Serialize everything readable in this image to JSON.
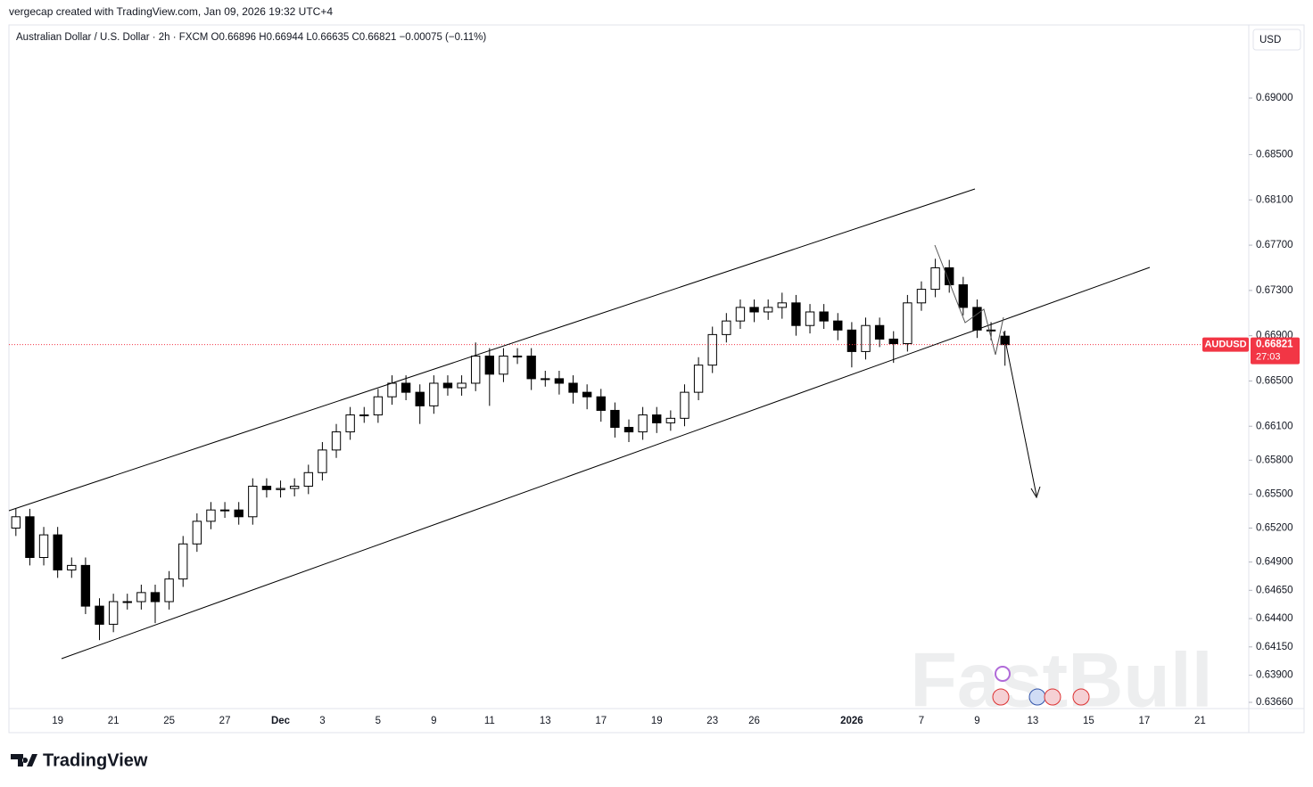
{
  "chart_data": {
    "type": "candlestick",
    "credit": "vergecap created with TradingView.com, Jan 09, 2026 19:32 UTC+4",
    "legend": "Australian Dollar / U.S. Dollar · 2h · FXCM  O0.66896  H0.66944  L0.66635  C0.66821  −0.00075 (−0.11%)",
    "currency": "USD",
    "brand": "TradingView",
    "watermark": "FastBull",
    "last_price": {
      "symbol": "AUDUSD",
      "price": "0.66821",
      "countdown": "27:03"
    },
    "up_color": "#ffffff",
    "down_color": "#000000",
    "outline_color": "#000000",
    "price_line_color": "#f23645",
    "grid": false,
    "categories": [
      null,
      null,
      null,
      "19",
      null,
      null,
      null,
      "21",
      null,
      null,
      null,
      "25",
      null,
      null,
      null,
      "27",
      null,
      null,
      null,
      "Dec",
      null,
      null,
      "3",
      null,
      null,
      null,
      "5",
      null,
      null,
      null,
      "9",
      null,
      null,
      null,
      "11",
      null,
      null,
      null,
      "13",
      null,
      null,
      null,
      "17",
      null,
      null,
      null,
      "19",
      null,
      null,
      null,
      "23",
      null,
      null,
      "26",
      null,
      null,
      null,
      null,
      null,
      null,
      "2026",
      null,
      null,
      null,
      null,
      "7",
      null,
      null,
      null,
      "9",
      null,
      null,
      null,
      "13",
      null,
      null,
      null,
      "15",
      null,
      null,
      null,
      "17",
      null,
      null,
      null,
      "21",
      null,
      null,
      null
    ],
    "open": [
      0.652,
      0.653,
      0.6494,
      0.6514,
      0.6483,
      0.6487,
      0.6451,
      0.6435,
      0.6455,
      0.6455,
      0.6463,
      0.6455,
      0.6475,
      0.6506,
      0.6526,
      0.6536,
      0.6536,
      0.653,
      0.6557,
      0.6554,
      0.6555,
      0.6557,
      0.6569,
      0.6589,
      0.6605,
      0.662,
      0.662,
      0.6636,
      0.6648,
      0.664,
      0.6628,
      0.6648,
      0.6644,
      0.6648,
      0.6672,
      0.6656,
      0.6672,
      0.6672,
      0.6652,
      0.6652,
      0.6648,
      0.664,
      0.6636,
      0.6624,
      0.6609,
      0.6605,
      0.662,
      0.6613,
      0.6617,
      0.664,
      0.6664,
      0.6691,
      0.6703,
      0.6715,
      0.6711,
      0.6715,
      0.6719,
      0.6699,
      0.6711,
      0.6703,
      0.6695,
      0.6676,
      0.6699,
      0.6687,
      0.6683,
      0.6719,
      0.6731,
      0.675,
      0.6735,
      0.6715,
      0.6695,
      0.66896,
      null,
      null,
      null,
      null,
      null,
      null,
      null,
      null,
      null,
      null,
      null,
      null,
      null,
      null,
      null,
      null,
      null
    ],
    "high": [
      0.6537,
      0.6537,
      0.6521,
      0.6521,
      0.6494,
      0.6494,
      0.6458,
      0.6462,
      0.6462,
      0.647,
      0.647,
      0.6482,
      0.6513,
      0.6533,
      0.6543,
      0.6543,
      0.6543,
      0.6564,
      0.6564,
      0.6562,
      0.6564,
      0.6576,
      0.6596,
      0.6612,
      0.6627,
      0.6627,
      0.6643,
      0.6655,
      0.6655,
      0.6647,
      0.6655,
      0.6655,
      0.6655,
      0.6684,
      0.6679,
      0.6679,
      0.6679,
      0.6679,
      0.6659,
      0.6659,
      0.6655,
      0.6647,
      0.6643,
      0.6631,
      0.6616,
      0.6627,
      0.6627,
      0.6624,
      0.6647,
      0.6671,
      0.6698,
      0.671,
      0.6722,
      0.6722,
      0.6722,
      0.6728,
      0.6726,
      0.6718,
      0.6718,
      0.671,
      0.6702,
      0.6706,
      0.6706,
      0.6694,
      0.6726,
      0.6738,
      0.6758,
      0.6757,
      0.6742,
      0.6722,
      0.6702,
      0.66944,
      null,
      null,
      null,
      null,
      null,
      null,
      null,
      null,
      null,
      null,
      null,
      null,
      null,
      null,
      null,
      null,
      null
    ],
    "low": [
      0.6513,
      0.6487,
      0.6487,
      0.6476,
      0.6476,
      0.6444,
      0.6421,
      0.6428,
      0.6448,
      0.6448,
      0.6436,
      0.6448,
      0.6468,
      0.6499,
      0.6519,
      0.6529,
      0.6523,
      0.6523,
      0.6547,
      0.6547,
      0.6548,
      0.655,
      0.6562,
      0.6582,
      0.6598,
      0.6613,
      0.6613,
      0.6629,
      0.6633,
      0.6612,
      0.6621,
      0.6637,
      0.6637,
      0.6641,
      0.6628,
      0.6649,
      0.6665,
      0.6642,
      0.6645,
      0.6638,
      0.663,
      0.6625,
      0.6614,
      0.66,
      0.6596,
      0.6598,
      0.6604,
      0.6606,
      0.661,
      0.6633,
      0.6657,
      0.6684,
      0.6696,
      0.6702,
      0.6704,
      0.6705,
      0.669,
      0.6692,
      0.6696,
      0.6686,
      0.6662,
      0.6669,
      0.668,
      0.6666,
      0.6676,
      0.6712,
      0.6724,
      0.6728,
      0.6708,
      0.6688,
      0.6686,
      0.66635,
      null,
      null,
      null,
      null,
      null,
      null,
      null,
      null,
      null,
      null,
      null,
      null,
      null,
      null,
      null,
      null,
      null
    ],
    "close": [
      0.653,
      0.6494,
      0.6514,
      0.6483,
      0.6487,
      0.6451,
      0.6435,
      0.6455,
      0.6455,
      0.6463,
      0.6455,
      0.6475,
      0.6506,
      0.6526,
      0.6536,
      0.6536,
      0.653,
      0.6557,
      0.6554,
      0.6555,
      0.6557,
      0.6569,
      0.6589,
      0.6605,
      0.662,
      0.662,
      0.6636,
      0.6648,
      0.664,
      0.6628,
      0.6648,
      0.6644,
      0.6648,
      0.6672,
      0.6656,
      0.6672,
      0.6672,
      0.6652,
      0.6652,
      0.6648,
      0.664,
      0.6636,
      0.6624,
      0.6609,
      0.6605,
      0.662,
      0.6613,
      0.6617,
      0.664,
      0.6664,
      0.6691,
      0.6703,
      0.6715,
      0.6711,
      0.6715,
      0.6719,
      0.6699,
      0.6711,
      0.6703,
      0.6695,
      0.6676,
      0.6699,
      0.6687,
      0.6683,
      0.6719,
      0.6731,
      0.675,
      0.6735,
      0.6715,
      0.6695,
      0.6695,
      0.66821,
      null,
      null,
      null,
      null,
      null,
      null,
      null,
      null,
      null,
      null,
      null,
      null,
      null,
      null,
      null,
      null,
      null
    ],
    "ylim": [
      0.63605,
      0.69646
    ],
    "yticks": [
      {
        "value": 0.69,
        "label": "0.69000"
      },
      {
        "value": 0.685,
        "label": "0.68500"
      },
      {
        "value": 0.681,
        "label": "0.68100"
      },
      {
        "value": 0.677,
        "label": "0.67700"
      },
      {
        "value": 0.673,
        "label": "0.67300"
      },
      {
        "value": 0.669,
        "label": "0.66900"
      },
      {
        "value": 0.665,
        "label": "0.66500"
      },
      {
        "value": 0.661,
        "label": "0.66100"
      },
      {
        "value": 0.658,
        "label": "0.65800"
      },
      {
        "value": 0.655,
        "label": "0.65500"
      },
      {
        "value": 0.652,
        "label": "0.65200"
      },
      {
        "value": 0.649,
        "label": "0.64900"
      },
      {
        "value": 0.6465,
        "label": "0.64650"
      },
      {
        "value": 0.644,
        "label": "0.64400"
      },
      {
        "value": 0.6415,
        "label": "0.64150"
      },
      {
        "value": 0.639,
        "label": "0.63900"
      },
      {
        "value": 0.6366,
        "label": "0.63660"
      }
    ]
  }
}
